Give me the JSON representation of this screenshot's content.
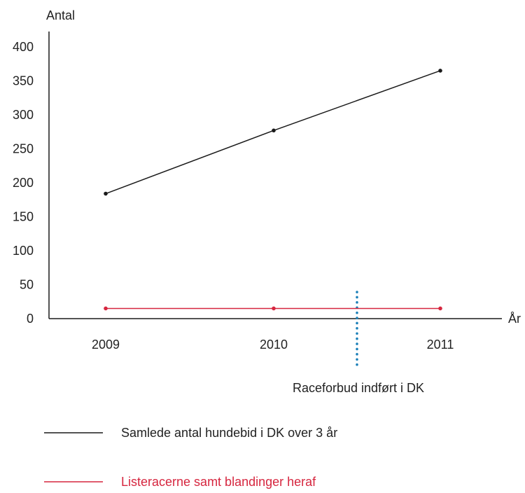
{
  "chart_data": {
    "type": "line",
    "ylabel": "Antal",
    "xlabel": "År",
    "x": [
      "2009",
      "2010",
      "2011"
    ],
    "ylim": [
      0,
      400
    ],
    "yticks": [
      0,
      50,
      100,
      150,
      200,
      250,
      300,
      350,
      400
    ],
    "series": [
      {
        "name": "Samlede antal hundebid i DK over 3 år",
        "values": [
          184,
          277,
          365
        ],
        "color": "#1a1a1a"
      },
      {
        "name": "Listeracerne samt blandinger heraf",
        "values": [
          15,
          15,
          15
        ],
        "color": "#d6263f"
      }
    ],
    "annotation": {
      "label": "Raceforbud indført i DK",
      "x_position": "between 2010 and 2011",
      "color": "#1a7fb8",
      "style": "dotted vertical line"
    },
    "grid": false,
    "legend_placement": "bottom-left"
  }
}
